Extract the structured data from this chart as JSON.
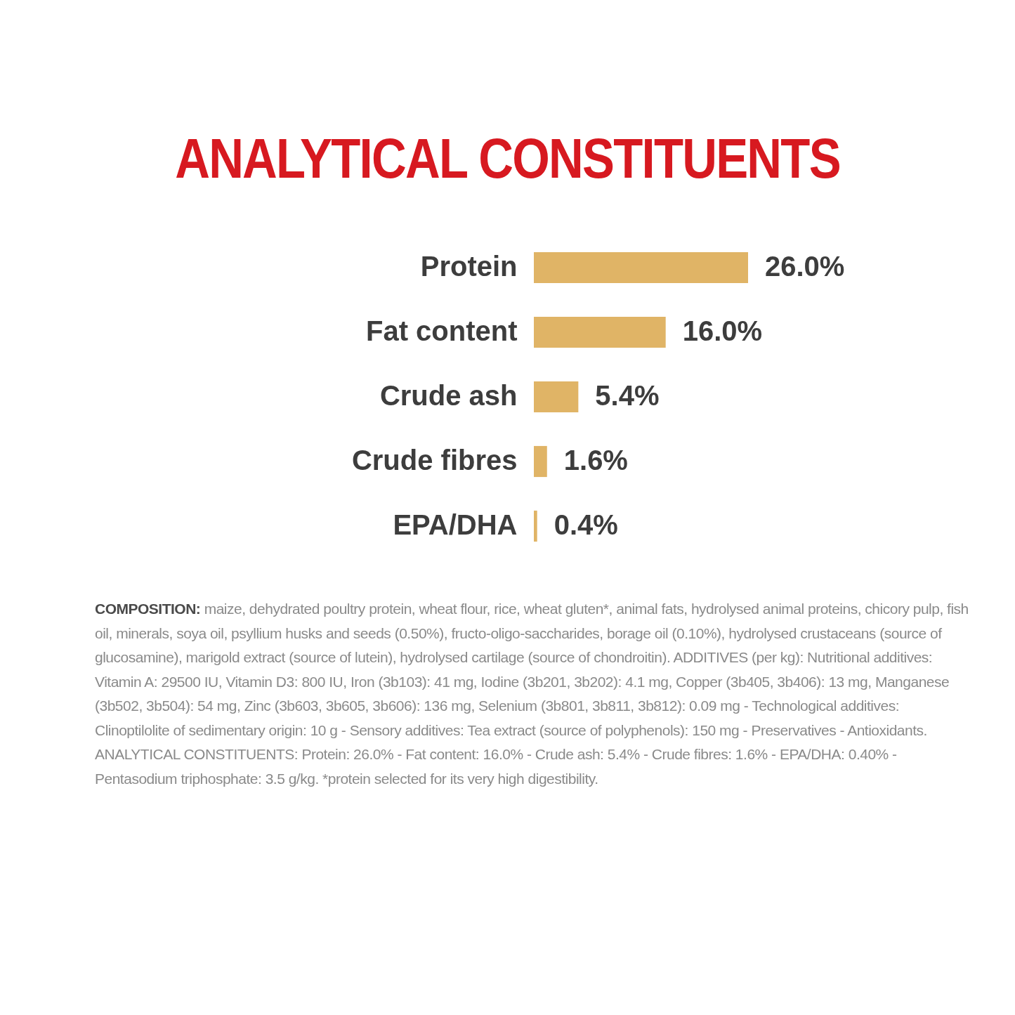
{
  "chart_data": {
    "type": "bar",
    "orientation": "horizontal",
    "title": "ANALYTICAL CONSTITUENTS",
    "categories": [
      "Protein",
      "Fat content",
      "Crude ash",
      "Crude fibres",
      "EPA/DHA"
    ],
    "values": [
      26.0,
      16.0,
      5.4,
      1.6,
      0.4
    ],
    "value_labels": [
      "26.0%",
      "16.0%",
      "5.4%",
      "1.6%",
      "0.4%"
    ],
    "color": "#e0b466",
    "tick_labels": "y",
    "annotations": [
      "COMPOSITION: maize, dehydrated poultry protein, wheat flour, rice, wheat gluten*, animal fats, hydrolysed animal proteins, chicory pulp, fish oil, minerals, soya oil, psyllium husks and seeds (0.50%), fructo-oligo-saccharides, borage oil (0.10%), hydrolysed crustaceans (source of glucosamine), marigold extract (source of lutein), hydrolysed cartilage (source of chondroitin). ADDITIVES (per kg): Nutritional additives: Vitamin A: 29500 IU, Vitamin D3: 800 IU, Iron (3b103): 41 mg, Iodine (3b201, 3b202): 4.1 mg, Copper (3b405, 3b406): 13 mg, Manganese (3b502, 3b504): 54 mg, Zinc (3b603, 3b605, 3b606): 136 mg, Selenium (3b801, 3b811, 3b812): 0.09 mg - Technological additives: Clinoptilolite of sedimentary origin: 10 g - Sensory additives: Tea extract (source of polyphenols): 150 mg - Preservatives - Antioxidants. ANALYTICAL CONSTITUENTS: Protein: 26.0% - Fat content: 16.0% - Crude ash: 5.4% - Crude fibres: 1.6% - EPA/DHA: 0.40% - Pentasodium triphosphate: 3.5 g/kg. *protein selected for its very high digestibility."
    ]
  }
}
